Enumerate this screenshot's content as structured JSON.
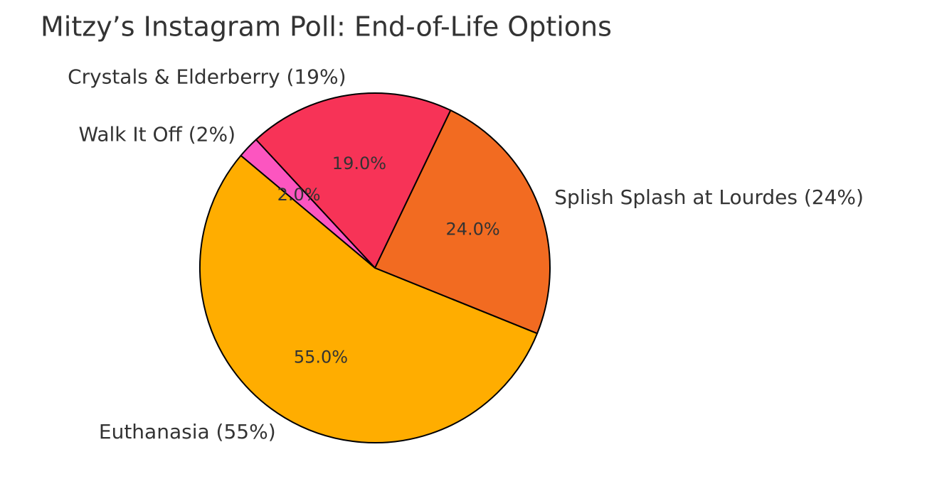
{
  "chart_data": {
    "type": "pie",
    "title": "Mitzy’s Instagram Poll: End-of-Life Options",
    "categories": [
      "Euthanasia (55%)",
      "Splish Splash at Lourdes (24%)",
      "Crystals & Elderberry (19%)",
      "Walk It Off (2%)"
    ],
    "values": [
      55,
      24,
      19,
      2
    ],
    "value_labels": [
      "55.0%",
      "24.0%",
      "19.0%",
      "2.0%"
    ],
    "colors": [
      "#ffad00",
      "#f26b21",
      "#f73357",
      "#fc55c0"
    ],
    "start_angle": 140,
    "counterclockwise": true
  }
}
